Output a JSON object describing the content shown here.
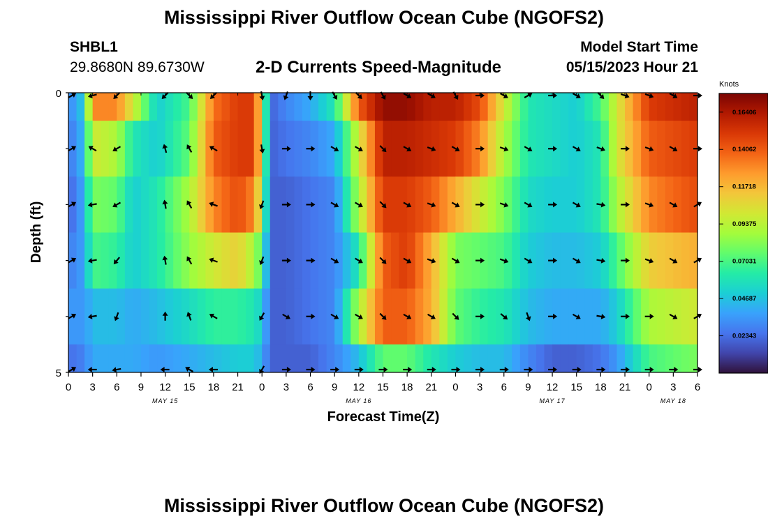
{
  "header": {
    "title": "Mississippi River Outflow Ocean Cube (NGOFS2)",
    "station_id": "SHBL1",
    "station_coords": "29.8680N  89.6730W",
    "subtitle": "2-D Currents Speed-Magnitude",
    "model_start_label": "Model Start Time",
    "model_start_value": "05/15/2023 Hour 21"
  },
  "footer": {
    "title": "Mississippi River Outflow Ocean Cube (NGOFS2)"
  },
  "chart_data": {
    "type": "heatmap",
    "xlabel": "Forecast Time(Z)",
    "ylabel": "Depth (ft)",
    "y_tick_labels": [
      "0",
      "5"
    ],
    "ylim": [
      0,
      5
    ],
    "x_tick_labels": [
      "0",
      "3",
      "6",
      "9",
      "12",
      "15",
      "18",
      "21",
      "0",
      "3",
      "6",
      "9",
      "12",
      "15",
      "18",
      "21",
      "0",
      "3",
      "6",
      "9",
      "12",
      "15",
      "18",
      "21",
      "0",
      "3",
      "6"
    ],
    "date_labels": [
      {
        "label": "MAY 15",
        "tick_index": 4
      },
      {
        "label": "MAY 16",
        "tick_index": 12
      },
      {
        "label": "MAY 17",
        "tick_index": 20
      },
      {
        "label": "MAY 18",
        "tick_index": 25
      }
    ],
    "time_range_hours": [
      0,
      78
    ],
    "colorbar": {
      "title": "Knots",
      "range": [
        0.0,
        0.1758
      ],
      "tick_labels": [
        "0.02343",
        "0.04687",
        "0.07031",
        "0.09375",
        "0.11718",
        "0.14062",
        "0.16406"
      ],
      "tick_values": [
        0.02343,
        0.04687,
        0.07031,
        0.09375,
        0.11718,
        0.14062,
        0.16406
      ],
      "colormap": [
        "#30123b",
        "#4145ab",
        "#4675ed",
        "#39a2fc",
        "#1bcfd4",
        "#24eca6",
        "#61fc6c",
        "#a4fc3b",
        "#d1e834",
        "#f3c63a",
        "#fe9b2d",
        "#f36315",
        "#d93806",
        "#b11901",
        "#7a0402"
      ]
    },
    "depth_layer_edges": [
      0,
      0.5,
      1.5,
      2.5,
      3.5,
      4.5,
      5
    ],
    "hour_knots": [
      0,
      1,
      2,
      3,
      6,
      8,
      11,
      15,
      18,
      21,
      23,
      24,
      25,
      27,
      30,
      33,
      36,
      39,
      42,
      45,
      48,
      51,
      54,
      57,
      60,
      63,
      66,
      68,
      72,
      78
    ],
    "speed_knots_by_layer": [
      [
        0.035,
        0.035,
        0.055,
        0.13,
        0.13,
        0.1,
        0.05,
        0.07,
        0.135,
        0.15,
        0.15,
        0.1,
        0.02,
        0.03,
        0.04,
        0.06,
        0.14,
        0.17,
        0.17,
        0.16,
        0.16,
        0.145,
        0.1,
        0.06,
        0.055,
        0.05,
        0.07,
        0.1,
        0.15,
        0.16
      ],
      [
        0.03,
        0.03,
        0.05,
        0.1,
        0.09,
        0.06,
        0.05,
        0.075,
        0.14,
        0.15,
        0.15,
        0.1,
        0.02,
        0.025,
        0.03,
        0.04,
        0.1,
        0.16,
        0.16,
        0.155,
        0.15,
        0.13,
        0.09,
        0.06,
        0.055,
        0.05,
        0.06,
        0.1,
        0.14,
        0.15
      ],
      [
        0.025,
        0.025,
        0.045,
        0.08,
        0.075,
        0.05,
        0.06,
        0.09,
        0.13,
        0.145,
        0.13,
        0.09,
        0.02,
        0.02,
        0.025,
        0.03,
        0.09,
        0.15,
        0.15,
        0.14,
        0.12,
        0.1,
        0.08,
        0.055,
        0.05,
        0.05,
        0.06,
        0.09,
        0.13,
        0.145
      ],
      [
        0.03,
        0.03,
        0.04,
        0.07,
        0.065,
        0.05,
        0.06,
        0.085,
        0.1,
        0.11,
        0.09,
        0.07,
        0.02,
        0.02,
        0.025,
        0.03,
        0.06,
        0.14,
        0.15,
        0.12,
        0.08,
        0.075,
        0.07,
        0.05,
        0.045,
        0.045,
        0.05,
        0.07,
        0.11,
        0.12
      ],
      [
        0.035,
        0.035,
        0.035,
        0.045,
        0.045,
        0.04,
        0.045,
        0.055,
        0.065,
        0.065,
        0.06,
        0.05,
        0.02,
        0.02,
        0.025,
        0.03,
        0.09,
        0.14,
        0.14,
        0.12,
        0.075,
        0.065,
        0.06,
        0.045,
        0.04,
        0.04,
        0.04,
        0.05,
        0.09,
        0.1
      ],
      [
        0.025,
        0.025,
        0.03,
        0.04,
        0.04,
        0.04,
        0.035,
        0.04,
        0.045,
        0.05,
        0.05,
        0.04,
        0.02,
        0.02,
        0.02,
        0.03,
        0.045,
        0.075,
        0.075,
        0.06,
        0.05,
        0.045,
        0.045,
        0.03,
        0.02,
        0.02,
        0.025,
        0.035,
        0.07,
        0.08
      ]
    ],
    "arrows": {
      "hours": [
        0,
        3,
        6,
        12,
        15,
        18,
        24,
        27,
        30,
        33,
        36,
        39,
        42,
        45,
        48,
        51,
        54,
        57,
        60,
        63,
        66,
        69,
        72,
        75,
        78
      ],
      "layer_depths_ft": [
        0,
        1,
        2,
        3,
        4,
        5
      ],
      "directions_deg": [
        [
          60,
          255,
          225,
          225,
          135,
          225,
          170,
          200,
          180,
          150,
          135,
          150,
          120,
          120,
          150,
          90,
          120,
          60,
          90,
          120,
          135,
          110,
          110,
          120,
          90
        ],
        [
          60,
          300,
          240,
          345,
          330,
          300,
          170,
          90,
          90,
          120,
          120,
          135,
          120,
          110,
          120,
          90,
          110,
          120,
          90,
          120,
          110,
          90,
          110,
          120,
          90
        ],
        [
          60,
          260,
          240,
          350,
          330,
          290,
          200,
          90,
          90,
          120,
          120,
          135,
          120,
          110,
          120,
          90,
          110,
          120,
          90,
          120,
          100,
          90,
          110,
          120,
          60
        ],
        [
          60,
          260,
          220,
          350,
          330,
          290,
          200,
          90,
          90,
          120,
          120,
          135,
          120,
          110,
          120,
          90,
          110,
          120,
          90,
          120,
          100,
          90,
          110,
          120,
          60
        ],
        [
          60,
          260,
          200,
          0,
          340,
          300,
          210,
          120,
          90,
          120,
          120,
          135,
          120,
          120,
          135,
          90,
          130,
          160,
          90,
          120,
          100,
          90,
          90,
          120,
          60
        ],
        [
          60,
          270,
          260,
          270,
          300,
          270,
          210,
          90,
          90,
          90,
          90,
          90,
          90,
          90,
          90,
          90,
          90,
          90,
          90,
          90,
          90,
          90,
          90,
          90,
          90
        ]
      ]
    }
  }
}
